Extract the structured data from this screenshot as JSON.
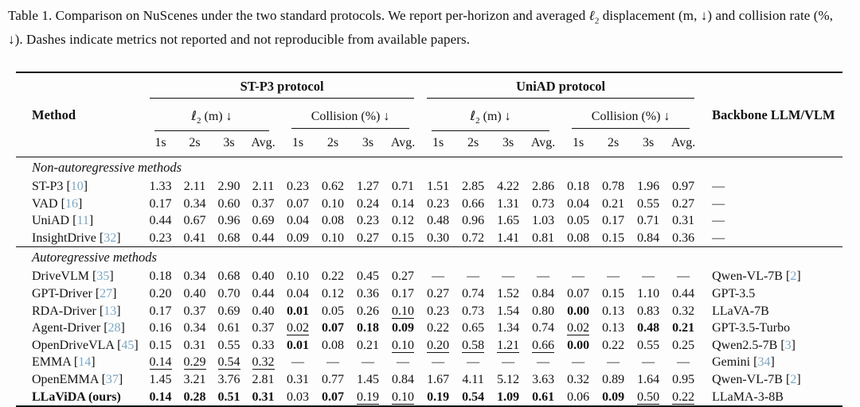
{
  "caption": {
    "segments": [
      {
        "text": "Table 1. Comparison on NuScenes under the two standard protocols. We report per-horizon and averaged ",
        "style": "normal"
      },
      {
        "text": "ℓ",
        "style": "italic"
      },
      {
        "text": "2",
        "style": "sub"
      },
      {
        "text": " displacement (m, ↓) and collision rate (%, ↓). Dashes indicate metrics not reported and not reproducible from available papers.",
        "style": "normal"
      }
    ]
  },
  "colors": {
    "citation": "#7ba7c4"
  },
  "table": {
    "header": {
      "method": "Method",
      "backbone": "Backbone LLM/VLM",
      "protocols": [
        "ST-P3 protocol",
        "UniAD protocol"
      ],
      "l2_label": {
        "sym": "ℓ",
        "sub": "2",
        "rest": " (m) ↓"
      },
      "collision_label": "Collision (%) ↓",
      "ticks": [
        "1s",
        "2s",
        "3s",
        "Avg."
      ]
    },
    "sections": [
      {
        "label": "Non-autoregressive methods",
        "rows": [
          {
            "method": {
              "name": "ST-P3",
              "cite": "10"
            },
            "cells": [
              "1.33",
              "2.11",
              "2.90",
              "2.11",
              "0.23",
              "0.62",
              "1.27",
              "0.71",
              "1.51",
              "2.85",
              "4.22",
              "2.86",
              "0.18",
              "0.78",
              "1.96",
              "0.97"
            ],
            "backbone": {
              "dash": true
            }
          },
          {
            "method": {
              "name": "VAD",
              "cite": "16"
            },
            "cells": [
              "0.17",
              "0.34",
              "0.60",
              "0.37",
              "0.07",
              "0.10",
              "0.24",
              "0.14",
              "0.23",
              "0.66",
              "1.31",
              "0.73",
              "0.04",
              "0.21",
              "0.55",
              "0.27"
            ],
            "backbone": {
              "dash": true
            }
          },
          {
            "method": {
              "name": "UniAD",
              "cite": "11"
            },
            "cells": [
              "0.44",
              "0.67",
              "0.96",
              "0.69",
              "0.04",
              "0.08",
              "0.23",
              "0.12",
              "0.48",
              "0.96",
              "1.65",
              "1.03",
              "0.05",
              "0.17",
              "0.71",
              "0.31"
            ],
            "backbone": {
              "dash": true
            }
          },
          {
            "method": {
              "name": "InsightDrive",
              "cite": "32"
            },
            "cells": [
              "0.23",
              "0.41",
              "0.68",
              "0.44",
              "0.09",
              "0.10",
              "0.27",
              "0.15",
              "0.30",
              "0.72",
              "1.41",
              "0.81",
              "0.08",
              "0.15",
              "0.84",
              "0.36"
            ],
            "backbone": {
              "dash": true
            }
          }
        ]
      },
      {
        "label": "Autoregressive methods",
        "rows": [
          {
            "method": {
              "name": "DriveVLM",
              "cite": "35"
            },
            "cells": [
              "0.18",
              "0.34",
              "0.68",
              "0.40",
              "0.10",
              "0.22",
              "0.45",
              "0.27",
              "—",
              "—",
              "—",
              "—",
              "—",
              "—",
              "—",
              "—"
            ],
            "backbone": {
              "name": "Qwen-VL-7B",
              "cite": "2"
            }
          },
          {
            "method": {
              "name": "GPT-Driver",
              "cite": "27"
            },
            "cells": [
              "0.20",
              "0.40",
              "0.70",
              "0.44",
              "0.04",
              "0.12",
              "0.36",
              "0.17",
              "0.27",
              "0.74",
              "1.52",
              "0.84",
              "0.07",
              "0.15",
              "1.10",
              "0.44"
            ],
            "backbone": {
              "name": "GPT-3.5"
            }
          },
          {
            "method": {
              "name": "RDA-Driver",
              "cite": "13"
            },
            "cells": [
              "0.17",
              "0.37",
              "0.69",
              "0.40",
              {
                "v": "0.01",
                "s": "b"
              },
              "0.05",
              "0.26",
              {
                "v": "0.10",
                "s": "u"
              },
              "0.23",
              "0.73",
              "1.54",
              "0.80",
              {
                "v": "0.00",
                "s": "b"
              },
              "0.13",
              "0.83",
              "0.32"
            ],
            "backbone": {
              "name": "LLaVA-7B"
            }
          },
          {
            "method": {
              "name": "Agent-Driver",
              "cite": "28"
            },
            "cells": [
              "0.16",
              "0.34",
              "0.61",
              "0.37",
              {
                "v": "0.02",
                "s": "u"
              },
              {
                "v": "0.07",
                "s": "b"
              },
              {
                "v": "0.18",
                "s": "b"
              },
              {
                "v": "0.09",
                "s": "b"
              },
              "0.22",
              "0.65",
              "1.34",
              "0.74",
              {
                "v": "0.02",
                "s": "u"
              },
              "0.13",
              {
                "v": "0.48",
                "s": "b"
              },
              {
                "v": "0.21",
                "s": "b"
              }
            ],
            "backbone": {
              "name": "GPT-3.5-Turbo"
            }
          },
          {
            "method": {
              "name": "OpenDriveVLA",
              "cite": "45"
            },
            "cells": [
              "0.15",
              "0.31",
              "0.55",
              "0.33",
              {
                "v": "0.01",
                "s": "b"
              },
              "0.08",
              "0.21",
              {
                "v": "0.10",
                "s": "u"
              },
              {
                "v": "0.20",
                "s": "u"
              },
              {
                "v": "0.58",
                "s": "u"
              },
              {
                "v": "1.21",
                "s": "u"
              },
              {
                "v": "0.66",
                "s": "u"
              },
              {
                "v": "0.00",
                "s": "b"
              },
              "0.22",
              "0.55",
              "0.25"
            ],
            "backbone": {
              "name": "Qwen2.5-7B",
              "cite": "3"
            }
          },
          {
            "method": {
              "name": "EMMA",
              "cite": "14"
            },
            "cells": [
              {
                "v": "0.14",
                "s": "u"
              },
              {
                "v": "0.29",
                "s": "u"
              },
              {
                "v": "0.54",
                "s": "u"
              },
              {
                "v": "0.32",
                "s": "u"
              },
              "—",
              "—",
              "—",
              "—",
              "—",
              "—",
              "—",
              "—",
              "—",
              "—",
              "—",
              "—"
            ],
            "backbone": {
              "name": "Gemini",
              "cite": "34"
            }
          },
          {
            "method": {
              "name": "OpenEMMA",
              "cite": "37"
            },
            "cells": [
              "1.45",
              "3.21",
              "3.76",
              "2.81",
              "0.31",
              "0.77",
              "1.45",
              "0.84",
              "1.67",
              "4.11",
              "5.12",
              "3.63",
              "0.32",
              "0.89",
              "1.64",
              "0.95"
            ],
            "backbone": {
              "name": "Qwen-VL-7B",
              "cite": "2"
            }
          },
          {
            "method": {
              "name": "LLaViDA (ours)",
              "bold": true
            },
            "cells": [
              {
                "v": "0.14",
                "s": "b"
              },
              {
                "v": "0.28",
                "s": "b"
              },
              {
                "v": "0.51",
                "s": "b"
              },
              {
                "v": "0.31",
                "s": "b"
              },
              "0.03",
              {
                "v": "0.07",
                "s": "b"
              },
              {
                "v": "0.19",
                "s": "u"
              },
              {
                "v": "0.10",
                "s": "u"
              },
              {
                "v": "0.19",
                "s": "b"
              },
              {
                "v": "0.54",
                "s": "b"
              },
              {
                "v": "1.09",
                "s": "b"
              },
              {
                "v": "0.61",
                "s": "b"
              },
              "0.06",
              {
                "v": "0.09",
                "s": "b"
              },
              {
                "v": "0.50",
                "s": "u"
              },
              {
                "v": "0.22",
                "s": "u"
              }
            ],
            "backbone": {
              "name": "LLaMA-3-8B"
            }
          }
        ]
      }
    ]
  }
}
